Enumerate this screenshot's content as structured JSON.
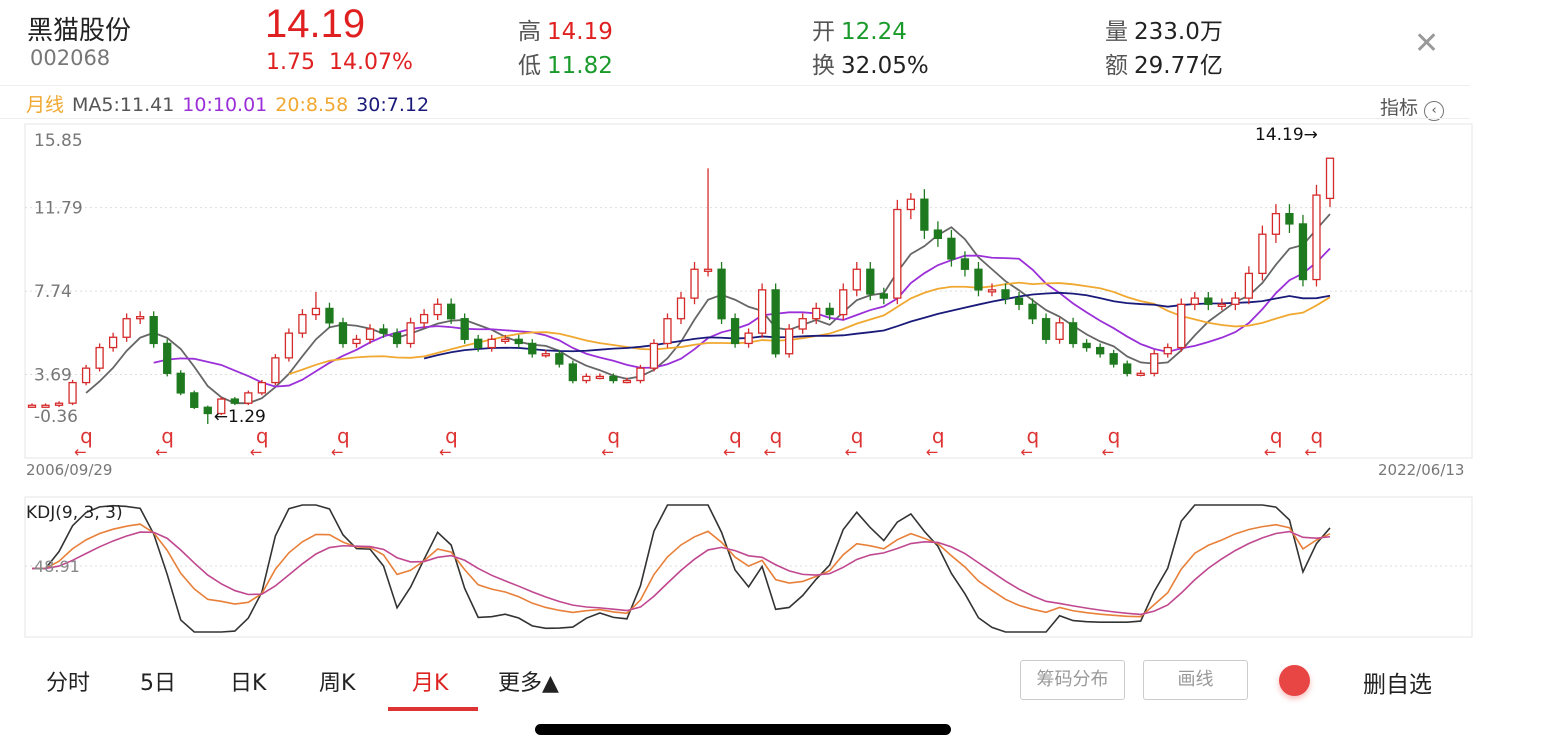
{
  "header": {
    "name": "黑猫股份",
    "code": "002068",
    "price": "14.19",
    "change": "1.75",
    "change_pct": "14.07%",
    "high_label": "高",
    "high": "14.19",
    "low_label": "低",
    "low": "11.82",
    "open_label": "开",
    "open": "12.24",
    "turnover_label": "换",
    "turnover": "32.05%",
    "volume_label": "量",
    "volume": "233.0万",
    "amount_label": "额",
    "amount": "29.77亿",
    "close_icon": "close-x-icon"
  },
  "legend": {
    "period": "月线",
    "ma5": "MA5:11.41",
    "ma10": "10:10.01",
    "ma20": "20:8.58",
    "ma30": "30:7.12",
    "indicator": "指标",
    "indicator_icon": "chevron-left-circle-icon"
  },
  "colors": {
    "up": "#d42a2a",
    "down": "#1f7a1f",
    "ma5": "#666666",
    "ma10": "#9b30d9",
    "ma20": "#f0a830",
    "ma30": "#1a1a7a",
    "k": "#333333",
    "d": "#e8803a",
    "j": "#c04890",
    "accent": "#d33333"
  },
  "chart_data": {
    "type": "candlestick",
    "period": "monthly",
    "start_date": "2006/09/29",
    "end_date": "2022/06/13",
    "y_ticks": [
      "15.85",
      "11.79",
      "7.74",
      "3.69",
      "-0.36"
    ],
    "ylim": [
      -0.36,
      15.85
    ],
    "max_label": "14.19→",
    "min_label": "←1.29",
    "min_value": 1.29,
    "max_value": 14.19,
    "close": [
      2.2,
      2.2,
      2.3,
      3.3,
      4.0,
      5.0,
      5.5,
      6.4,
      6.5,
      5.2,
      3.75,
      2.8,
      2.1,
      1.8,
      2.5,
      2.3,
      2.8,
      3.3,
      4.5,
      5.7,
      6.6,
      6.9,
      6.2,
      5.2,
      5.4,
      5.9,
      5.7,
      5.2,
      6.2,
      6.6,
      7.1,
      6.4,
      5.4,
      5.0,
      5.4,
      5.4,
      5.2,
      4.7,
      4.7,
      4.2,
      3.4,
      3.6,
      3.6,
      3.4,
      3.4,
      4.0,
      5.2,
      6.4,
      7.4,
      8.8,
      8.8,
      6.4,
      5.2,
      5.7,
      7.8,
      4.7,
      5.9,
      6.4,
      6.9,
      6.6,
      7.8,
      8.8,
      7.6,
      7.4,
      11.7,
      12.2,
      10.7,
      10.3,
      9.3,
      8.8,
      7.8,
      7.8,
      7.4,
      7.1,
      6.4,
      5.4,
      6.2,
      5.2,
      5.0,
      4.7,
      4.2,
      3.75,
      3.75,
      4.7,
      5.0,
      7.1,
      7.4,
      7.1,
      7.1,
      7.4,
      8.6,
      10.5,
      11.5,
      11.0,
      8.3,
      12.4,
      14.19
    ],
    "open_last": 12.24,
    "spike_highs": {
      "50": 13.7,
      "21": 7.7,
      "65": 12.5
    },
    "dividend_marker": {
      "label": "q",
      "arrow": "←",
      "indices": [
        4,
        10,
        17,
        23,
        31,
        43,
        52,
        55,
        61,
        67,
        74,
        80,
        92,
        95
      ]
    },
    "kdj": {
      "label": "KDJ(9, 3, 3)",
      "tick": "48.91",
      "params": [
        9,
        3,
        3
      ]
    }
  },
  "tabs": [
    {
      "label": "分时"
    },
    {
      "label": "5日"
    },
    {
      "label": "日K"
    },
    {
      "label": "周K"
    },
    {
      "label": "月K",
      "active": true
    },
    {
      "label": "更多▲"
    }
  ],
  "actions": {
    "chips": "筹码分布",
    "draw": "画线",
    "remove": "删自选"
  }
}
